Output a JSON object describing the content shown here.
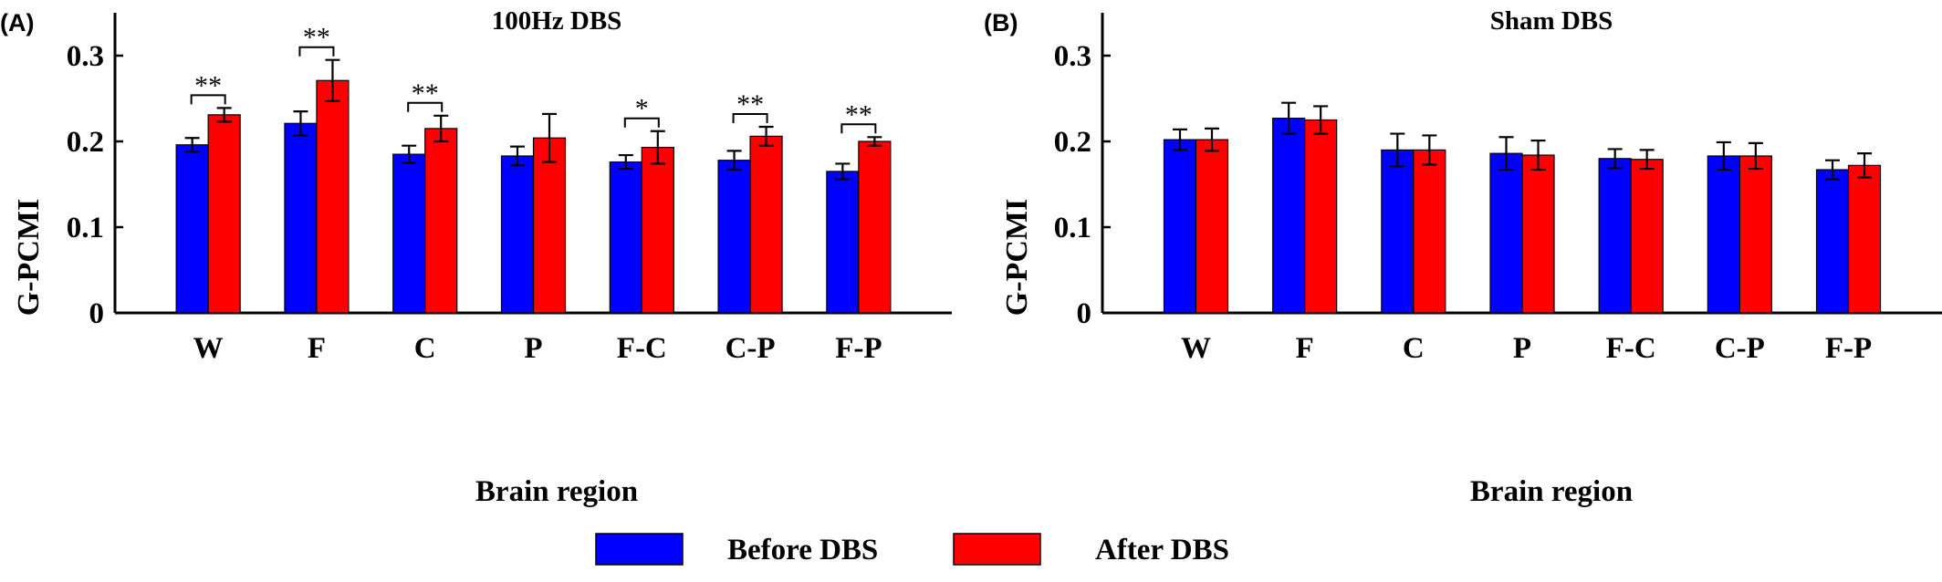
{
  "chart_data": [
    {
      "panel": "(A)",
      "type": "bar",
      "title": "100Hz DBS",
      "xlabel": "Brain region",
      "ylabel": "G-PCMI",
      "ylim": [
        0,
        0.35
      ],
      "yticks": [
        "0",
        "0.1",
        "0.2",
        "0.3"
      ],
      "categories": [
        "W",
        "F",
        "C",
        "P",
        "F-C",
        "C-P",
        "F-P"
      ],
      "series": [
        {
          "name": "Before DBS",
          "color": "#0000ff",
          "values": [
            0.196,
            0.221,
            0.185,
            0.183,
            0.176,
            0.178,
            0.165
          ],
          "errors": [
            0.008,
            0.014,
            0.01,
            0.011,
            0.008,
            0.011,
            0.009
          ]
        },
        {
          "name": "After DBS",
          "color": "#ff0000",
          "values": [
            0.231,
            0.271,
            0.215,
            0.204,
            0.193,
            0.206,
            0.2
          ],
          "errors": [
            0.008,
            0.024,
            0.015,
            0.028,
            0.019,
            0.011,
            0.005
          ]
        }
      ],
      "significance": [
        "**",
        "**",
        "**",
        "",
        "*",
        "**",
        "**"
      ],
      "grid": false,
      "legend_position": "bottom-center"
    },
    {
      "panel": "(B)",
      "type": "bar",
      "title": "Sham DBS",
      "xlabel": "Brain region",
      "ylabel": "G-PCMI",
      "ylim": [
        0,
        0.35
      ],
      "yticks": [
        "0",
        "0.1",
        "0.2",
        "0.3"
      ],
      "categories": [
        "W",
        "F",
        "C",
        "P",
        "F-C",
        "C-P",
        "F-P"
      ],
      "series": [
        {
          "name": "Before DBS",
          "color": "#0000ff",
          "values": [
            0.202,
            0.227,
            0.19,
            0.186,
            0.18,
            0.183,
            0.167
          ],
          "errors": [
            0.012,
            0.018,
            0.019,
            0.019,
            0.011,
            0.016,
            0.011
          ]
        },
        {
          "name": "After DBS",
          "color": "#ff0000",
          "values": [
            0.202,
            0.225,
            0.19,
            0.184,
            0.179,
            0.183,
            0.172
          ],
          "errors": [
            0.013,
            0.016,
            0.017,
            0.017,
            0.011,
            0.015,
            0.014
          ]
        }
      ],
      "grid": false,
      "legend_position": "bottom-center"
    }
  ],
  "legend": [
    {
      "label": "Before DBS",
      "color": "#0000ff"
    },
    {
      "label": "After DBS",
      "color": "#ff0000"
    }
  ]
}
